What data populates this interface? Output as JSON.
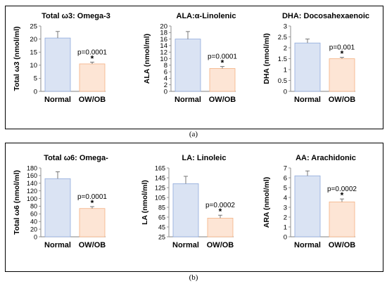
{
  "panel_labels": {
    "a": "(a)",
    "b": "(b)"
  },
  "colors": {
    "normal_fill": "#dae3f3",
    "normal_stroke": "#8faadc",
    "ob_fill": "#fde5d5",
    "ob_stroke": "#f4b183"
  },
  "chart_data": [
    {
      "id": "omega3",
      "type": "bar",
      "title": "Total ω3: Omega-3",
      "ylabel": "Total ω3 (nmol/ml)",
      "categories": [
        "Normal",
        "OW/OB"
      ],
      "values": [
        20.4,
        10.5
      ],
      "errors": [
        2.5,
        0.7
      ],
      "ylim": [
        0,
        25
      ],
      "yticks": [
        0,
        5,
        10,
        15,
        20,
        25
      ],
      "tick_labels": [
        "0",
        "5",
        "10",
        "15",
        "20",
        "25"
      ],
      "pvalue": "p=0.0001",
      "star": "*"
    },
    {
      "id": "ala",
      "type": "bar",
      "title": "ALA:α-Linolenic",
      "ylabel": "ALA (nmol/ml)",
      "categories": [
        "Normal",
        "OW/OB"
      ],
      "values": [
        16.0,
        7.0
      ],
      "errors": [
        2.3,
        0.6
      ],
      "ylim": [
        0,
        20
      ],
      "yticks": [
        0,
        2,
        4,
        6,
        8,
        10,
        12,
        14,
        16,
        18,
        20
      ],
      "tick_labels": [
        "0",
        "2",
        "4",
        "6",
        "8",
        "10",
        "12",
        "14",
        "16",
        "18",
        "20"
      ],
      "pvalue": "p=0.0001",
      "star": "*"
    },
    {
      "id": "dha",
      "type": "bar",
      "title": "DHA: Docosahexaenoic",
      "ylabel": "DHA (nmol/ml)",
      "categories": [
        "Normal",
        "OW/OB"
      ],
      "values": [
        2.22,
        1.5
      ],
      "errors": [
        0.18,
        0.06
      ],
      "ylim": [
        0,
        3
      ],
      "yticks": [
        0,
        0.5,
        1,
        1.5,
        2,
        2.5,
        3
      ],
      "tick_labels": [
        "0",
        "0.5",
        "1",
        "1.5",
        "2",
        "2.5",
        "3"
      ],
      "pvalue": "p=0.001",
      "star": "*"
    },
    {
      "id": "omega6",
      "type": "bar",
      "title": "Total ω6: Omega-",
      "ylabel": "Total ω6 (nmol/ml)",
      "categories": [
        "Normal",
        "OW/OB"
      ],
      "values": [
        152,
        74
      ],
      "errors": [
        18,
        5
      ],
      "ylim": [
        0,
        180
      ],
      "yticks": [
        0,
        20,
        40,
        60,
        80,
        100,
        120,
        140,
        160,
        180
      ],
      "tick_labels": [
        "0",
        "20",
        "40",
        "60",
        "80",
        "100",
        "120",
        "140",
        "160",
        "180"
      ],
      "pvalue": "p=0.0001",
      "star": "*"
    },
    {
      "id": "la",
      "type": "bar",
      "title": "LA: Linoleic",
      "ylabel": "LA (nmol/ml)",
      "categories": [
        "Normal",
        "OW/OB"
      ],
      "values": [
        133,
        63
      ],
      "errors": [
        15,
        6
      ],
      "ylim": [
        25,
        165
      ],
      "yticks": [
        25,
        45,
        65,
        85,
        105,
        125,
        145,
        165
      ],
      "tick_labels": [
        "25",
        "45",
        "65",
        "85",
        "105",
        "125",
        "145",
        "165"
      ],
      "pvalue": "p=0.0002",
      "star": "*"
    },
    {
      "id": "aa",
      "type": "bar",
      "title": "AA: Arachidonic",
      "ylabel": "ARA (nmol/ml)",
      "categories": [
        "Normal",
        "OW/OB"
      ],
      "values": [
        6.2,
        3.55
      ],
      "errors": [
        0.5,
        0.3
      ],
      "ylim": [
        0,
        7
      ],
      "yticks": [
        0,
        1,
        2,
        3,
        4,
        5,
        6,
        7
      ],
      "tick_labels": [
        "0",
        "1",
        "2",
        "3",
        "4",
        "5",
        "6",
        "7"
      ],
      "pvalue": "p=0.0002",
      "star": "*"
    }
  ]
}
